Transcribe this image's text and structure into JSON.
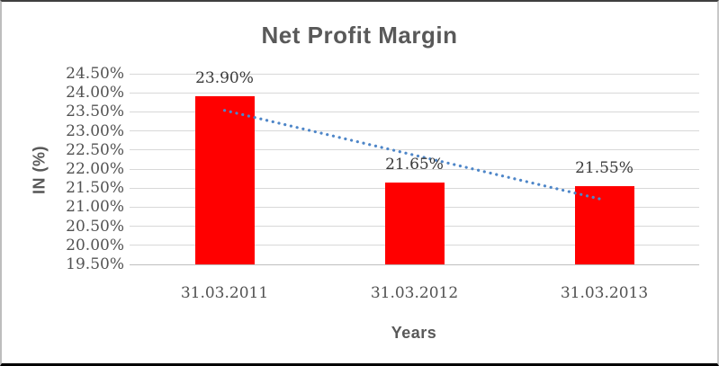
{
  "chart_data": {
    "type": "bar",
    "title": "Net Profit Margin",
    "xlabel": "Years",
    "ylabel": "IN (%)",
    "categories": [
      "31.03.2011",
      "31.03.2012",
      "31.03.2013"
    ],
    "values": [
      23.9,
      21.65,
      21.55
    ],
    "data_labels": [
      "23.90%",
      "21.65%",
      "21.55%"
    ],
    "ylim": [
      19.5,
      24.5
    ],
    "ytick_step": 0.5,
    "ytick_labels": [
      "24.50%",
      "24.00%",
      "23.50%",
      "23.00%",
      "22.50%",
      "22.00%",
      "21.50%",
      "21.00%",
      "20.50%",
      "20.00%",
      "19.50%"
    ],
    "grid": true,
    "legend": false,
    "trendline": {
      "type": "linear",
      "style": "dotted",
      "start_value": 23.54,
      "end_value": 21.19
    }
  },
  "colors": {
    "bar": "#FF0000",
    "trendline": "#4E86C8",
    "gridline": "#D8D8D8",
    "axis_line": "#BFBFBF",
    "title_text": "#595959",
    "axis_title_text": "#595959",
    "tick_label_text": "#525252",
    "data_label_text": "#3A3A3A"
  }
}
